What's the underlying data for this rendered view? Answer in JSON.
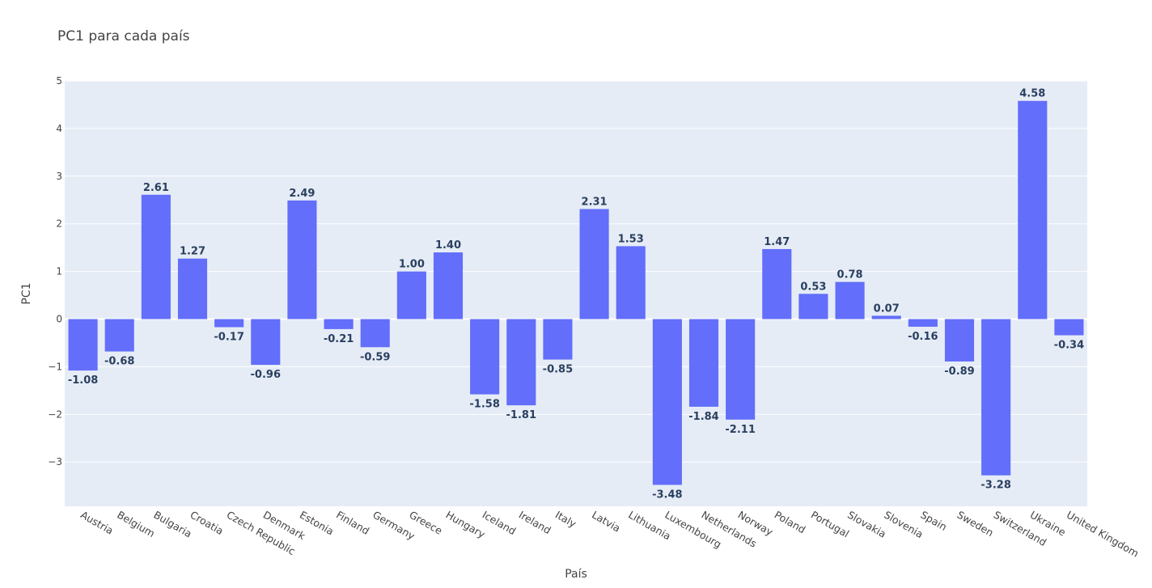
{
  "chart_data": {
    "type": "bar",
    "title": "PC1 para cada país",
    "xlabel": "País",
    "ylabel": "PC1",
    "categories": [
      "Austria",
      "Belgium",
      "Bulgaria",
      "Croatia",
      "Czech Republic",
      "Denmark",
      "Estonia",
      "Finland",
      "Germany",
      "Greece",
      "Hungary",
      "Iceland",
      "Ireland",
      "Italy",
      "Latvia",
      "Lithuania",
      "Luxembourg",
      "Netherlands",
      "Norway",
      "Poland",
      "Portugal",
      "Slovakia",
      "Slovenia",
      "Spain",
      "Sweden",
      "Switzerland",
      "Ukraine",
      "United Kingdom"
    ],
    "values": [
      -1.08,
      -0.68,
      2.61,
      1.27,
      -0.17,
      -0.96,
      2.49,
      -0.21,
      -0.59,
      1.0,
      1.4,
      -1.58,
      -1.81,
      -0.85,
      2.31,
      1.53,
      -3.48,
      -1.84,
      -2.11,
      1.47,
      0.53,
      0.78,
      0.07,
      -0.16,
      -0.89,
      -3.28,
      4.58,
      -0.34
    ],
    "data_labels": [
      "-1.08",
      "-0.68",
      "2.61",
      "1.27",
      "-0.17",
      "-0.96",
      "2.49",
      "-0.21",
      "-0.59",
      "1.00",
      "1.40",
      "-1.58",
      "-1.81",
      "-0.85",
      "2.31",
      "1.53",
      "-3.48",
      "-1.84",
      "-2.11",
      "1.47",
      "0.53",
      "0.78",
      "0.07",
      "-0.16",
      "-0.89",
      "-3.28",
      "4.58",
      "-0.34"
    ],
    "yticks": [
      5,
      4,
      3,
      2,
      1,
      0,
      -1,
      -2,
      -3
    ],
    "ytick_labels": [
      "5",
      "4",
      "3",
      "2",
      "1",
      "0",
      "−1",
      "−2",
      "−3"
    ],
    "ylim": [
      -3.93,
      5
    ],
    "grid": true,
    "colors": {
      "bar": "#636efa",
      "plot_bg": "#e5ecf6",
      "grid": "#ffffff",
      "label": "#2a3f5f"
    }
  }
}
